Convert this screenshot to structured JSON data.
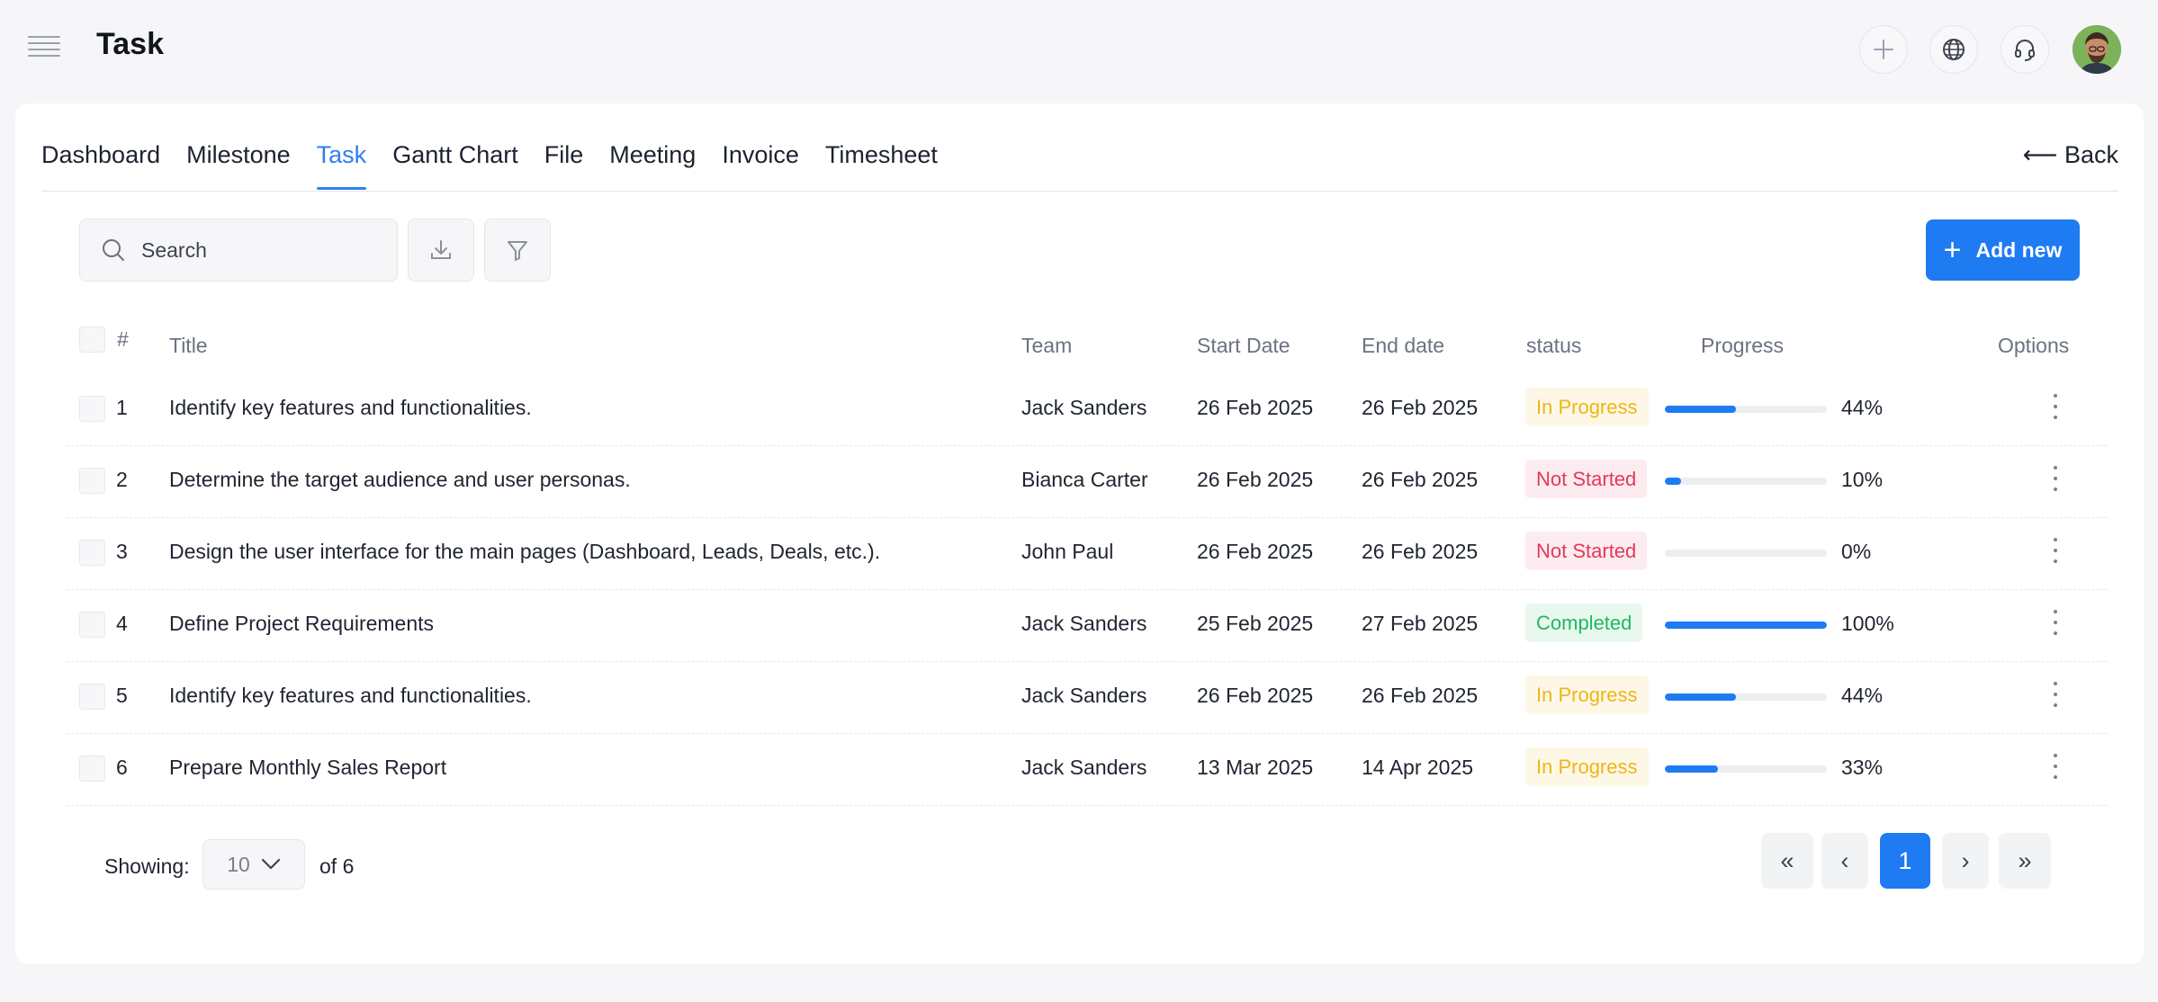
{
  "header": {
    "title": "Task",
    "icons": [
      "plus-icon",
      "globe-icon",
      "headset-icon"
    ]
  },
  "tabs": [
    {
      "label": "Dashboard",
      "active": false
    },
    {
      "label": "Milestone",
      "active": false
    },
    {
      "label": "Task",
      "active": true
    },
    {
      "label": "Gantt Chart",
      "active": false
    },
    {
      "label": "File",
      "active": false
    },
    {
      "label": "Meeting",
      "active": false
    },
    {
      "label": "Invoice",
      "active": false
    },
    {
      "label": "Timesheet",
      "active": false
    }
  ],
  "back_label": "⟵ Back",
  "toolbar": {
    "search_placeholder": "Search",
    "add_label": "Add new"
  },
  "table": {
    "columns": [
      "#",
      "Title",
      "Team",
      "Start Date",
      "End date",
      "status",
      "Progress",
      "Options"
    ],
    "rows": [
      {
        "num": "1",
        "title": "Identify key features and functionalities.",
        "team": "Jack Sanders",
        "start": "26 Feb 2025",
        "end": "26 Feb 2025",
        "status": "In Progress",
        "status_key": "inprogress",
        "progress": 44,
        "progress_label": "44%"
      },
      {
        "num": "2",
        "title": "Determine the target audience and user personas.",
        "team": "Bianca Carter",
        "start": "26 Feb 2025",
        "end": "26 Feb 2025",
        "status": "Not Started",
        "status_key": "notstarted",
        "progress": 10,
        "progress_label": "10%"
      },
      {
        "num": "3",
        "title": "Design the user interface for the main pages (Dashboard, Leads, Deals, etc.).",
        "team": "John Paul",
        "start": "26 Feb 2025",
        "end": "26 Feb 2025",
        "status": "Not Started",
        "status_key": "notstarted",
        "progress": 0,
        "progress_label": "0%"
      },
      {
        "num": "4",
        "title": "Define Project Requirements",
        "team": "Jack Sanders",
        "start": "25 Feb 2025",
        "end": "27 Feb 2025",
        "status": "Completed",
        "status_key": "completed",
        "progress": 100,
        "progress_label": "100%"
      },
      {
        "num": "5",
        "title": "Identify key features and functionalities.",
        "team": "Jack Sanders",
        "start": "26 Feb 2025",
        "end": "26 Feb 2025",
        "status": "In Progress",
        "status_key": "inprogress",
        "progress": 44,
        "progress_label": "44%"
      },
      {
        "num": "6",
        "title": "Prepare Monthly Sales Report",
        "team": "Jack Sanders",
        "start": "13 Mar 2025",
        "end": "14 Apr 2025",
        "status": "In Progress",
        "status_key": "inprogress",
        "progress": 33,
        "progress_label": "33%"
      }
    ]
  },
  "footer": {
    "showing_label": "Showing:",
    "page_size": "10",
    "of_total": "of 6",
    "pagination": {
      "first": "«",
      "prev": "‹",
      "current": "1",
      "next": "›",
      "last": "»"
    }
  },
  "colors": {
    "accent": "#1e7bf2",
    "in_progress": "#f0b419",
    "not_started": "#e5385a",
    "completed": "#1fba5c"
  }
}
